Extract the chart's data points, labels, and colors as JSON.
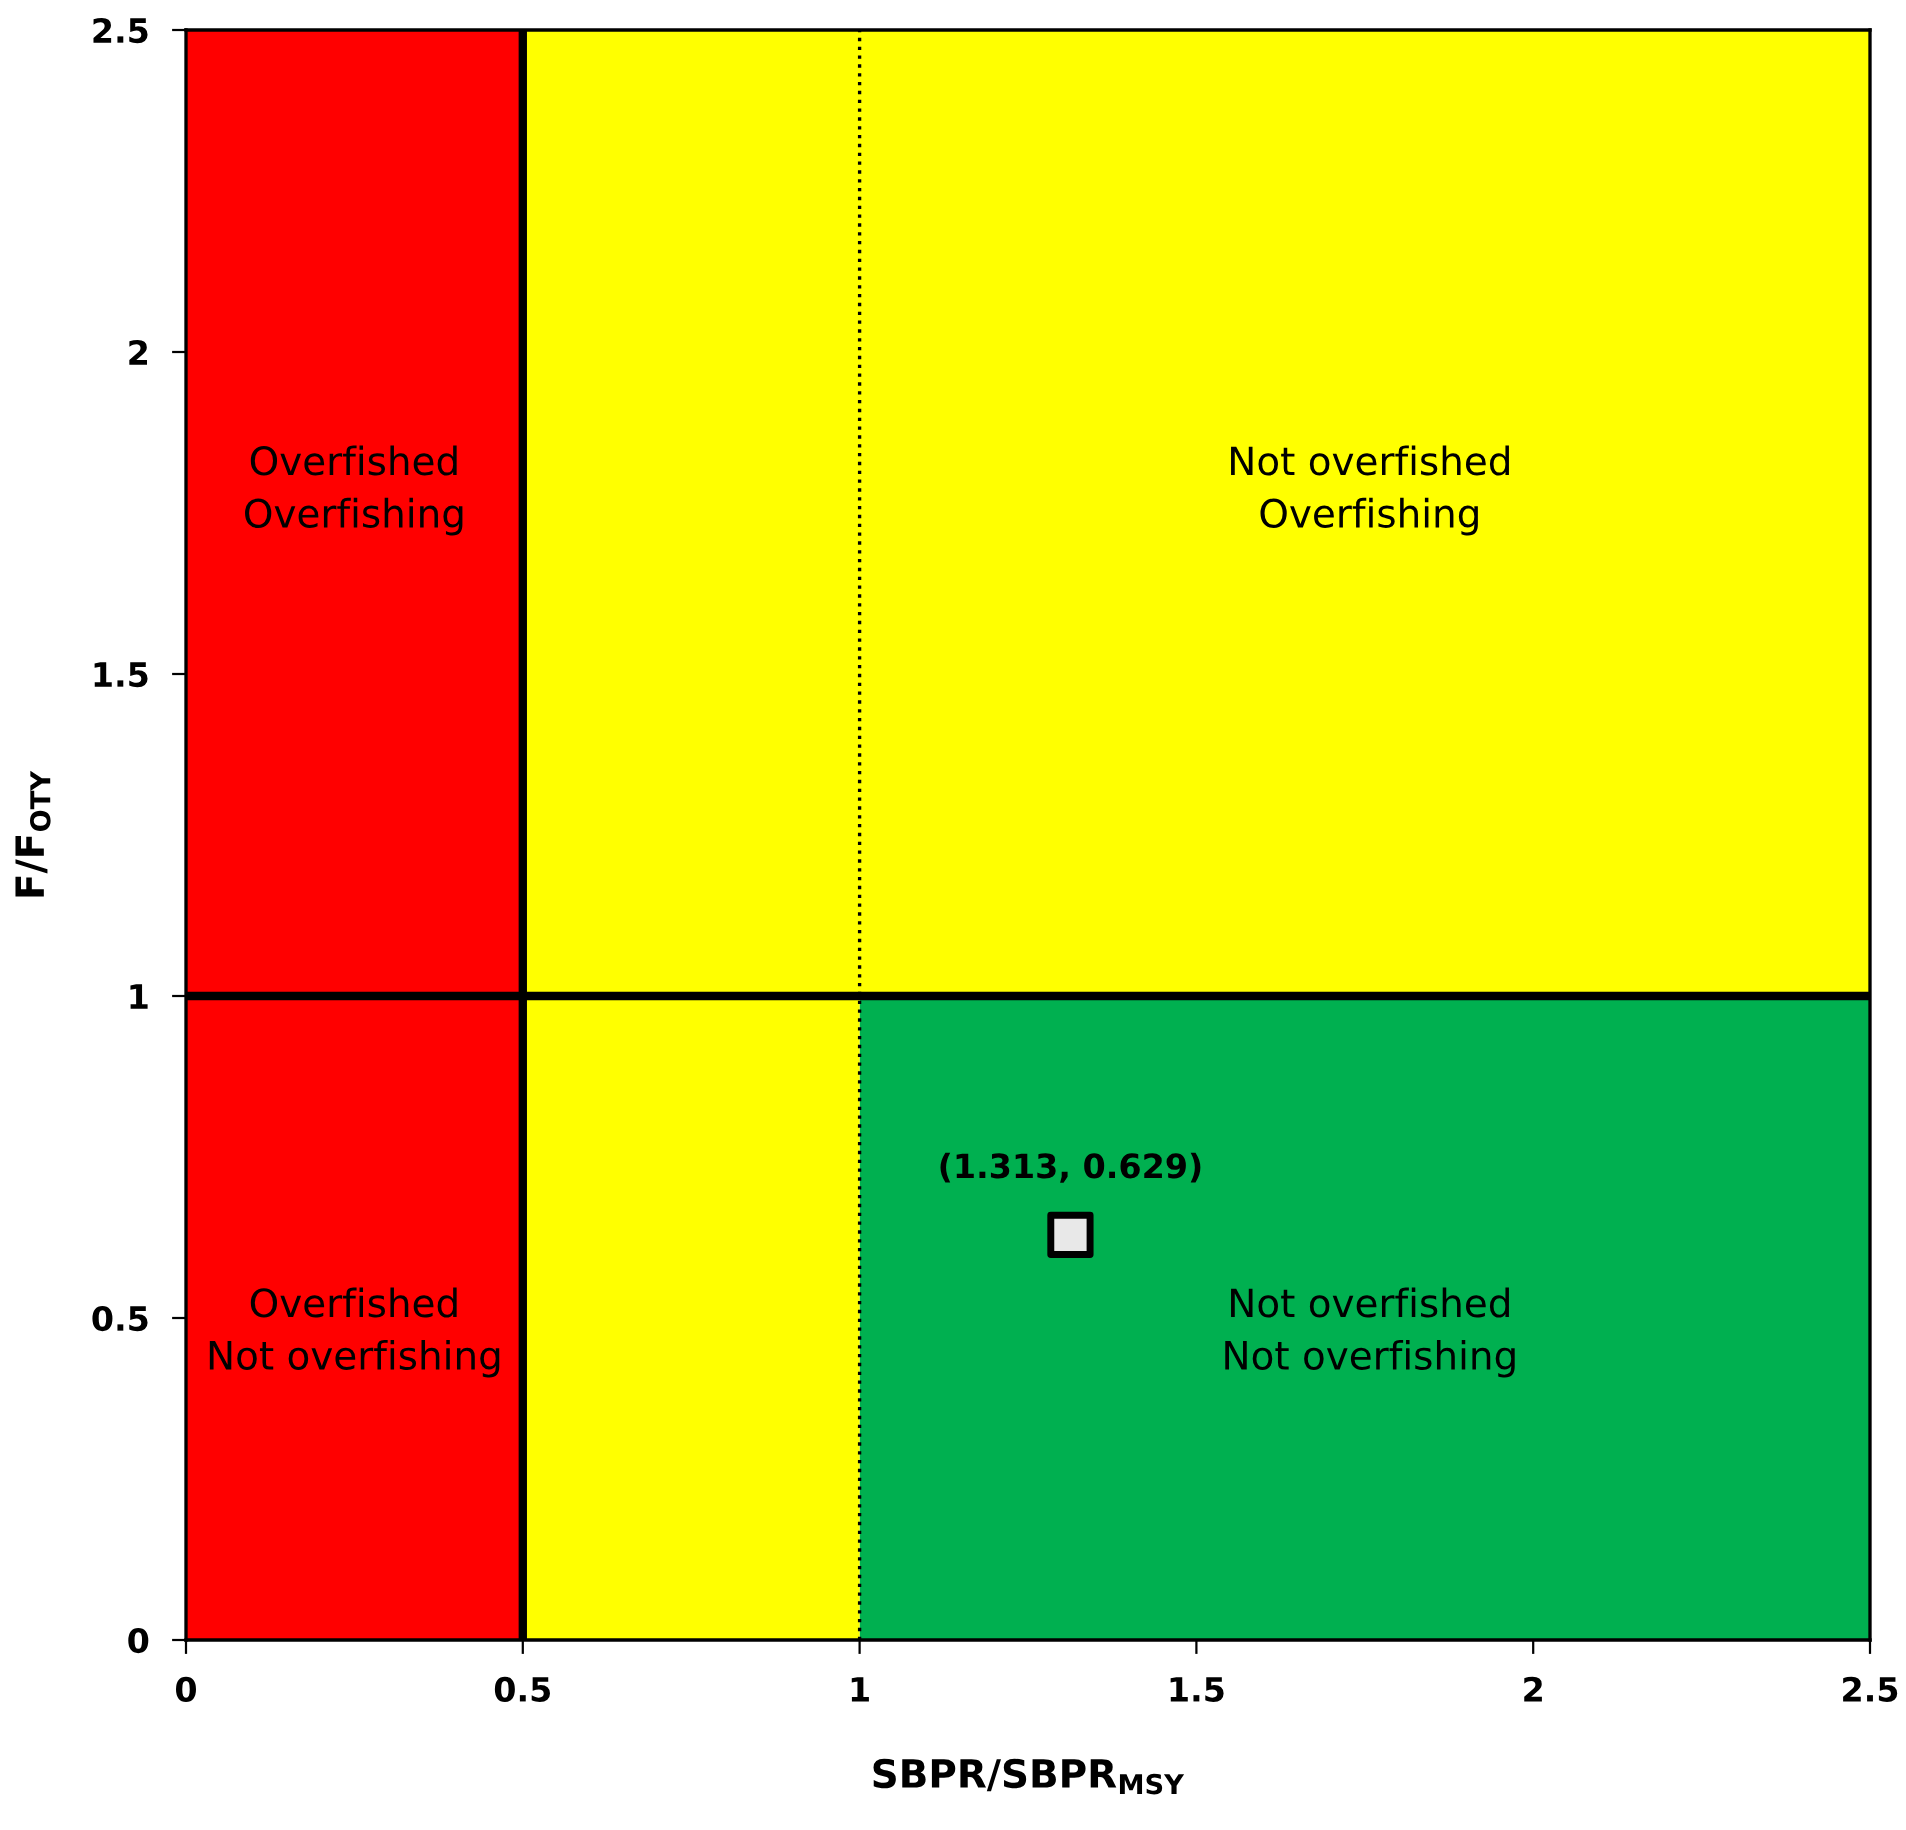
{
  "chart_data": {
    "type": "scatter",
    "xlabel": "SBPR/SBPR$_{MSY}$",
    "ylabel": "F/F$_{OTY}$",
    "x": [
      1.313
    ],
    "values": [
      0.629
    ],
    "value_labels": [
      "(1.313, 0.629)"
    ],
    "color": "#e8e8e8",
    "marker": "square",
    "xlim": [
      0,
      2.5
    ],
    "ylim": [
      0,
      2.5
    ],
    "xticks": [
      0,
      0.5,
      1,
      1.5,
      2,
      2.5
    ],
    "yticks": [
      0,
      0.5,
      1,
      1.5,
      2,
      2.5
    ],
    "grid": false,
    "bands": [
      {
        "axis": "x",
        "from": 1,
        "to": 2.5,
        "color": "#00b050"
      },
      {
        "axis": "y",
        "from": 1,
        "to": 2.5,
        "color": "#ffff00"
      },
      {
        "axis": "x",
        "from": 0.5,
        "to": 1,
        "color": "#ffff00"
      },
      {
        "axis": "x",
        "from": 0,
        "to": 0.5,
        "color": "#ff0000"
      }
    ],
    "ref_lines": [
      {
        "axis": "x",
        "value": 0.5,
        "color": "#000000",
        "line_style": "solid"
      },
      {
        "axis": "x",
        "value": 1,
        "color": "#000000",
        "line_style": "dotted"
      },
      {
        "axis": "y",
        "value": 1,
        "color": "#000000",
        "line_style": "solid"
      }
    ],
    "annotations": [
      "Overfished\nOverfishing",
      "Not overfished\nOverfishing",
      "Overfished\nNot overfishing",
      "Not overfished\nNot overfishing"
    ]
  }
}
